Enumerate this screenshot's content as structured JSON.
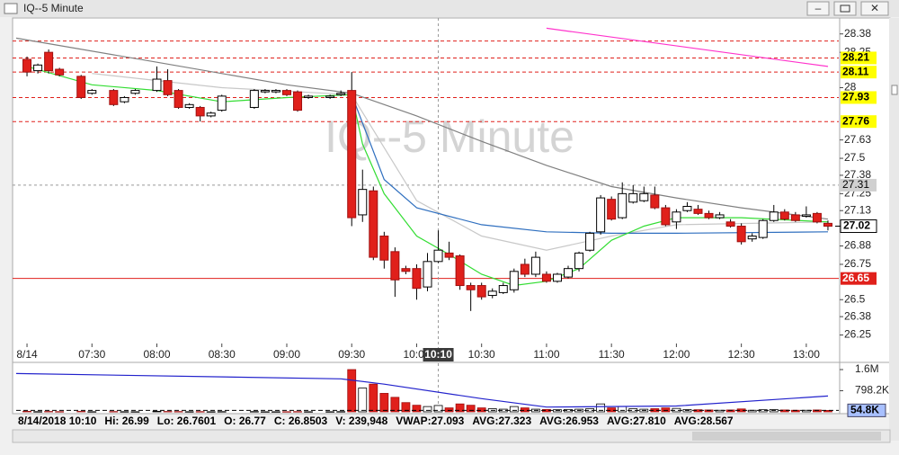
{
  "window": {
    "title": "IQ--5 Minute"
  },
  "chart_data": {
    "type": "candlestick",
    "title": "IQ--5 Minute",
    "x": [
      "07:00",
      "07:05",
      "07:10",
      "07:15",
      "07:25",
      "07:30",
      "07:40",
      "07:45",
      "07:50",
      "08:00",
      "08:05",
      "08:10",
      "08:15",
      "08:20",
      "08:25",
      "08:30",
      "08:45",
      "08:50",
      "08:55",
      "09:00",
      "09:05",
      "09:10",
      "09:20",
      "09:25",
      "09:30",
      "09:35",
      "09:40",
      "09:45",
      "09:50",
      "09:55",
      "10:00",
      "10:05",
      "10:10",
      "10:15",
      "10:20",
      "10:25",
      "10:30",
      "10:35",
      "10:40",
      "10:45",
      "10:50",
      "10:55",
      "11:00",
      "11:05",
      "11:10",
      "11:15",
      "11:20",
      "11:25",
      "11:30",
      "11:35",
      "11:40",
      "11:45",
      "11:50",
      "11:55",
      "12:00",
      "12:05",
      "12:10",
      "12:15",
      "12:20",
      "12:25",
      "12:30",
      "12:35",
      "12:40",
      "12:45",
      "12:50",
      "12:55",
      "13:00",
      "13:05",
      "13:10"
    ],
    "open": [
      28.2,
      28.12,
      28.25,
      28.13,
      28.08,
      27.96,
      27.98,
      27.9,
      27.96,
      27.98,
      28.05,
      27.98,
      27.86,
      27.86,
      27.8,
      27.84,
      27.86,
      27.97,
      27.97,
      27.98,
      27.97,
      27.93,
      27.93,
      27.95,
      27.98,
      27.1,
      27.27,
      26.95,
      26.84,
      26.72,
      26.72,
      26.59,
      26.77,
      26.83,
      26.81,
      26.6,
      26.6,
      26.53,
      26.55,
      26.57,
      26.75,
      26.68,
      26.68,
      26.63,
      26.66,
      26.72,
      26.85,
      26.98,
      27.21,
      27.08,
      27.19,
      27.2,
      27.24,
      27.15,
      27.05,
      27.13,
      27.14,
      27.11,
      27.08,
      27.05,
      27.02,
      26.93,
      26.94,
      27.06,
      27.12,
      27.1,
      27.09,
      27.11,
      27.04
    ],
    "high": [
      28.22,
      28.17,
      28.27,
      28.14,
      28.09,
      27.99,
      27.99,
      27.94,
      27.99,
      28.15,
      28.13,
      27.99,
      27.89,
      27.87,
      27.83,
      27.95,
      27.99,
      27.99,
      27.99,
      27.99,
      27.98,
      27.95,
      27.95,
      27.98,
      28.11,
      27.42,
      27.3,
      26.98,
      26.87,
      26.74,
      26.75,
      26.83,
      26.99,
      26.91,
      26.82,
      26.62,
      26.62,
      26.58,
      26.62,
      26.72,
      26.79,
      26.84,
      26.7,
      26.69,
      26.74,
      26.84,
      26.98,
      27.24,
      27.23,
      27.33,
      27.31,
      27.3,
      27.3,
      27.17,
      27.14,
      27.19,
      27.17,
      27.13,
      27.12,
      27.07,
      27.04,
      26.97,
      27.07,
      27.17,
      27.14,
      27.12,
      27.16,
      27.12,
      27.06
    ],
    "low": [
      28.08,
      28.1,
      28.1,
      28.08,
      27.92,
      27.95,
      27.87,
      27.89,
      27.95,
      27.97,
      27.94,
      27.85,
      27.85,
      27.76,
      27.79,
      27.83,
      27.85,
      27.96,
      27.96,
      27.94,
      27.83,
      27.92,
      27.92,
      27.94,
      27.02,
      27.05,
      26.78,
      26.72,
      26.52,
      26.68,
      26.5,
      26.56,
      26.7601,
      26.78,
      26.57,
      26.42,
      26.5,
      26.51,
      26.54,
      26.55,
      26.66,
      26.66,
      26.62,
      26.62,
      26.65,
      26.7,
      26.84,
      26.96,
      27.06,
      27.07,
      27.18,
      27.19,
      27.14,
      27.02,
      27.0,
      27.12,
      27.1,
      27.07,
      27.07,
      27.01,
      26.89,
      26.91,
      26.93,
      27.05,
      27.06,
      27.05,
      27.08,
      27.04,
      26.99
    ],
    "close": [
      28.11,
      28.16,
      28.12,
      28.09,
      27.93,
      27.98,
      27.88,
      27.93,
      27.98,
      28.06,
      27.95,
      27.86,
      27.88,
      27.8,
      27.82,
      27.94,
      27.98,
      27.98,
      27.98,
      27.95,
      27.84,
      27.94,
      27.94,
      27.96,
      27.08,
      27.28,
      26.8,
      26.78,
      26.64,
      26.7,
      26.58,
      26.77,
      26.8503,
      26.8,
      26.6,
      26.57,
      26.52,
      26.56,
      26.6,
      26.7,
      26.68,
      26.8,
      26.63,
      26.68,
      26.72,
      26.83,
      26.97,
      27.22,
      27.07,
      27.25,
      27.25,
      27.25,
      27.15,
      27.03,
      27.12,
      27.16,
      27.11,
      27.08,
      27.1,
      27.02,
      26.91,
      26.95,
      27.06,
      27.12,
      27.07,
      27.06,
      27.1,
      27.05,
      27.02
    ],
    "volume": [
      20000,
      8000,
      15000,
      9000,
      18000,
      6000,
      12000,
      7000,
      5000,
      20000,
      15000,
      12000,
      6000,
      10000,
      5000,
      9000,
      11000,
      4000,
      4000,
      6000,
      10000,
      5000,
      5000,
      9000,
      1600000,
      900000,
      1050000,
      700000,
      550000,
      350000,
      250000,
      200000,
      239948,
      150000,
      300000,
      250000,
      150000,
      120000,
      100000,
      200000,
      150000,
      100000,
      90000,
      80000,
      90000,
      100000,
      120000,
      300000,
      150000,
      200000,
      120000,
      100000,
      120000,
      150000,
      130000,
      90000,
      80000,
      70000,
      60000,
      70000,
      110000,
      60000,
      80000,
      90000,
      70000,
      60000,
      60000,
      70000,
      54800
    ],
    "up_color": "#ffffff",
    "down_color": "#e0201b",
    "xlim": [
      "06:55",
      "13:15"
    ],
    "xticks": [
      {
        "value": "07:00",
        "label": "8/14"
      },
      "07:30",
      "08:00",
      "08:30",
      "09:00",
      "09:30",
      "10:00",
      "10:30",
      "11:00",
      "11:30",
      "12:00",
      "12:30",
      "13:00"
    ],
    "ylim": [
      26.19,
      28.48
    ],
    "yticks": [
      28.38,
      28.25,
      28,
      27.63,
      27.5,
      27.38,
      27.25,
      27.13,
      26.88,
      26.75,
      26.5,
      26.38,
      26.25
    ],
    "levels": [
      {
        "price": 28.33,
        "color": "#e0201b",
        "style": "dashed"
      },
      {
        "price": 28.21,
        "color": "#e0201b",
        "style": "dashed",
        "badge": "#ffff00"
      },
      {
        "price": 28.11,
        "color": "#e0201b",
        "style": "dashed",
        "badge": "#ffff00"
      },
      {
        "price": 27.93,
        "color": "#e0201b",
        "style": "dashed",
        "badge": "#ffff00"
      },
      {
        "price": 27.76,
        "color": "#e0201b",
        "style": "dashed",
        "badge": "#ffff00"
      },
      {
        "price": 26.65,
        "color": "#e0201b",
        "style": "solid",
        "badge": "#e0201b"
      }
    ],
    "last_price": 27.02,
    "cursor": {
      "time": "10:10",
      "price": 27.31
    },
    "lines": [
      {
        "color": "#808080",
        "x": [
          "06:55",
          "08:00",
          "09:00",
          "09:30",
          "10:00",
          "10:30",
          "11:00",
          "11:30",
          "12:00",
          "12:30",
          "13:10"
        ],
        "values": [
          28.35,
          28.18,
          28.02,
          27.96,
          27.8,
          27.62,
          27.45,
          27.3,
          27.22,
          27.15,
          27.07
        ]
      },
      {
        "color": "#ff33cc",
        "x": [
          "11:00",
          "13:10"
        ],
        "values": [
          28.42,
          28.15
        ]
      },
      {
        "color": "#c8c8c8",
        "x": [
          "07:30",
          "08:30",
          "09:30",
          "10:00",
          "10:30",
          "11:00",
          "11:30",
          "12:00",
          "13:10"
        ],
        "values": [
          28.1,
          28.0,
          27.95,
          27.2,
          26.95,
          26.85,
          26.95,
          27.03,
          27.05
        ]
      },
      {
        "color": "#2f6fbf",
        "x": [
          "09:30",
          "09:45",
          "10:00",
          "10:30",
          "11:00",
          "11:30",
          "12:00",
          "13:10"
        ],
        "values": [
          27.95,
          27.35,
          27.15,
          27.03,
          26.98,
          26.97,
          26.97,
          26.98
        ]
      },
      {
        "color": "#33dd33",
        "x": [
          "07:00",
          "07:30",
          "08:00",
          "08:30",
          "09:00",
          "09:30",
          "09:35",
          "09:45",
          "10:00",
          "10:15",
          "10:30",
          "10:45",
          "11:00",
          "11:15",
          "11:30",
          "11:45",
          "12:00",
          "12:30",
          "13:10"
        ],
        "values": [
          28.15,
          28.02,
          27.98,
          27.9,
          27.93,
          27.95,
          27.6,
          27.25,
          26.95,
          26.82,
          26.68,
          26.6,
          26.63,
          26.72,
          26.92,
          27.02,
          27.08,
          27.08,
          27.05
        ]
      }
    ],
    "vlim": [
      0,
      1600000
    ],
    "vticks": [
      {
        "value": 1600000,
        "label": "1.6M"
      },
      {
        "value": 798200,
        "label": "798.2K"
      }
    ],
    "volume_current": {
      "value": 54800,
      "label": "54.8K"
    },
    "volume_avg": {
      "color": "#2222cc",
      "x": [
        "06:55",
        "09:25",
        "09:45",
        "10:30",
        "11:00",
        "12:00",
        "13:10"
      ],
      "values": [
        1450000,
        1250000,
        1050000,
        500000,
        180000,
        220000,
        600000
      ]
    }
  },
  "status": {
    "datetime": "8/14/2018 10:10",
    "fields": [
      "Hi: 26.99",
      "Lo: 26.7601",
      "O: 26.77",
      "C: 26.8503",
      "V: 239,948",
      "VWAP:27.093",
      "AVG:27.323",
      "AVG:26.953",
      "AVG:27.810",
      "AVG:28.567"
    ]
  }
}
